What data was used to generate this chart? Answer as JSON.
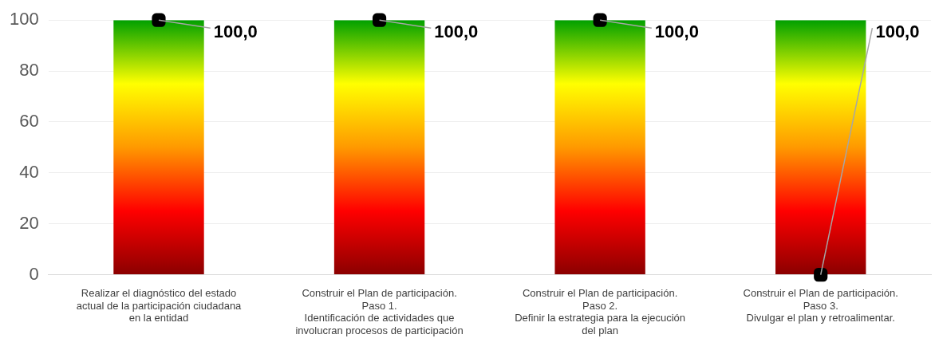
{
  "chart_data": {
    "type": "bar",
    "categories": [
      "Realizar el diagnóstico del estado\nactual de la participación ciudadana\nen la entidad",
      "Construir el Plan de participación.\nPaso 1.\nIdentificación de actividades que\ninvolucran procesos de participación",
      "Construir el Plan de participación.\nPaso 2.\nDefinir la estrategia para la ejecución\ndel plan",
      "Construir el Plan de participación.\nPaso 3.\nDivulgar el plan y retroalimentar."
    ],
    "series": [
      {
        "color": "#ffff00",
        "values": [
          100,
          100,
          100,
          100
        ],
        "value_labels": [
          "100,0",
          "100,0",
          "100,0",
          "100,0"
        ]
      },
      {
        "type": "scatter",
        "color": "#000000",
        "x": [
          "Realizar el diagnóstico del estado\nactual de la participación ciudadana\nen la entidad",
          "Construir el Plan de participación.\nPaso 1.\nIdentificación de actividades que\ninvolucran procesos de participación",
          "Construir el Plan de participación.\nPaso 2.\nDefinir la estrategia para la ejecución\ndel plan",
          "Construir el Plan de participación.\nPaso 3.\nDivulgar el plan y retroalimentar."
        ],
        "values": [
          100,
          100,
          100,
          0
        ]
      }
    ],
    "marker": "square",
    "ylim": [
      0,
      100
    ],
    "yticks": [
      0,
      20,
      40,
      60,
      80,
      100
    ],
    "grid": "y",
    "legend": false
  }
}
